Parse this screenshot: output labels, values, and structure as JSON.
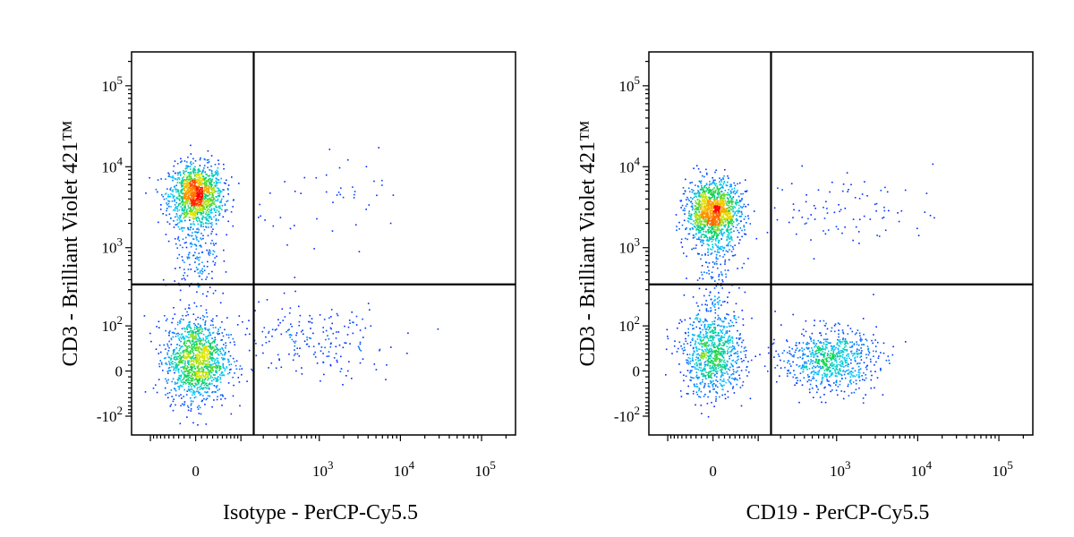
{
  "chart_data": [
    {
      "type": "scatter",
      "subtype": "flow-cytometry-density-dot-plot",
      "xlabel": "Isotype - PerCP-Cy5.5",
      "ylabel": "CD3 - Brilliant Violet 421™",
      "x_scale": "biexponential",
      "y_scale": "biexponential",
      "x_ticks": [
        "0",
        "10^3",
        "10^4",
        "10^5"
      ],
      "y_ticks": [
        "10^5",
        "10^4",
        "10^3",
        "10^2",
        "0",
        "-10^2"
      ],
      "quadrant_gate": {
        "x": 150,
        "y": 350
      },
      "populations": [
        {
          "description": "CD3+ dense cluster",
          "x_center": 0,
          "y_center": 4500,
          "count": 1300
        },
        {
          "description": "CD3- cluster",
          "x_center": 0,
          "y_center": 20,
          "count": 1300
        },
        {
          "description": "transitional events",
          "x_center": 0,
          "y_center": 800,
          "count": 180
        },
        {
          "description": "sparse upper-right events",
          "x_center": 2000,
          "y_center": 4000,
          "count": 45
        },
        {
          "description": "sparse lower-right events",
          "x_center": 800,
          "y_center": 60,
          "count": 200
        }
      ]
    },
    {
      "type": "scatter",
      "subtype": "flow-cytometry-density-dot-plot",
      "xlabel": "CD19 - PerCP-Cy5.5",
      "ylabel": "CD3 - Brilliant Violet 421™",
      "x_scale": "biexponential",
      "y_scale": "biexponential",
      "x_ticks": [
        "0",
        "10^3",
        "10^4",
        "10^5"
      ],
      "y_ticks": [
        "10^5",
        "10^4",
        "10^3",
        "10^2",
        "0",
        "-10^2"
      ],
      "quadrant_gate": {
        "x": 150,
        "y": 350
      },
      "populations": [
        {
          "description": "CD3+ dense cluster",
          "x_center": 0,
          "y_center": 2800,
          "count": 1400
        },
        {
          "description": "CD3- CD19- cluster",
          "x_center": 0,
          "y_center": 30,
          "count": 900
        },
        {
          "description": "transitional events",
          "x_center": 0,
          "y_center": 700,
          "count": 150
        },
        {
          "description": "CD19+ B cell cluster",
          "x_center": 800,
          "y_center": 20,
          "count": 750
        },
        {
          "description": "CD3+ CD19+ sparse events",
          "x_center": 1500,
          "y_center": 3000,
          "count": 90
        }
      ]
    }
  ]
}
